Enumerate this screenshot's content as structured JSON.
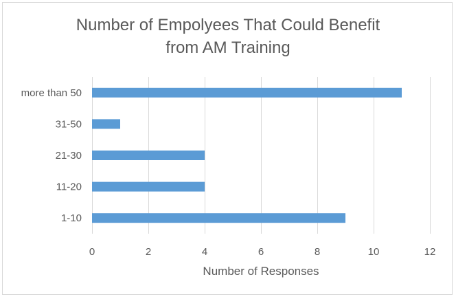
{
  "chart_data": {
    "type": "bar",
    "orientation": "horizontal",
    "title_lines": [
      "Number of Empolyees  That Could Benefit",
      "from AM Training"
    ],
    "categories": [
      "1-10",
      "11-20",
      "21-30",
      "31-50",
      "more than 50"
    ],
    "values": [
      9,
      4,
      4,
      1,
      11
    ],
    "xlabel": "Number of Responses",
    "ylabel": "",
    "xlim": [
      0,
      12
    ],
    "xticks": [
      0,
      2,
      4,
      6,
      8,
      10,
      12
    ],
    "grid": true,
    "legend": "none",
    "bar_color": "#5b9bd5",
    "grid_color": "#d9d9d9",
    "text_color": "#595959"
  }
}
